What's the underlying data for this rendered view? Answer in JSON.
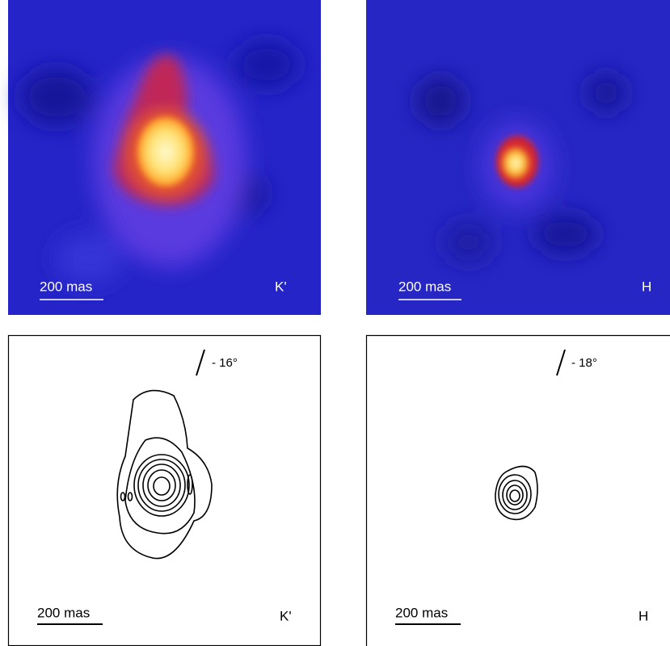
{
  "panels": [
    {
      "scale_label": "200 mas",
      "band": "K'"
    },
    {
      "scale_label": "200 mas",
      "band": "H"
    },
    {
      "scale_label": "200 mas",
      "band": "K'",
      "angle_label": "- 16°"
    },
    {
      "scale_label": "200 mas",
      "band": "H",
      "angle_label": "- 18°"
    }
  ]
}
